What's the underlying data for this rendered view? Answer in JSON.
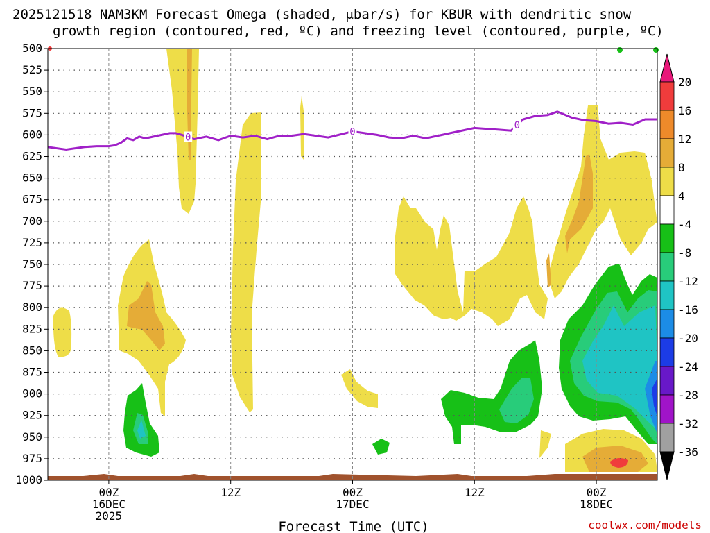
{
  "chart_data": {
    "type": "heatmap",
    "title_line1": "2025121518 NAM3KM Forecast Omega (shaded, μbar/s) for KBUR with dendritic snow",
    "title_line2": "growth region (contoured, red, ºC) and freezing level (contoured, purple, ºC)",
    "xlabel": "Forecast Time (UTC)",
    "credit": "coolwx.com/models",
    "y_levels": [
      "500",
      "525",
      "550",
      "575",
      "600",
      "625",
      "650",
      "675",
      "700",
      "725",
      "750",
      "775",
      "800",
      "825",
      "850",
      "875",
      "900",
      "925",
      "950",
      "975",
      "1000"
    ],
    "ylim": [
      500,
      1000
    ],
    "xlim_hours": [
      -5,
      45
    ],
    "x_ticks": [
      {
        "hour": 0,
        "line1": "00Z",
        "line2": "16DEC",
        "line3": "2025"
      },
      {
        "hour": 10,
        "line1": "12Z",
        "line2": "",
        "line3": ""
      },
      {
        "hour": 20,
        "line1": "00Z",
        "line2": "17DEC",
        "line3": ""
      },
      {
        "hour": 30,
        "line1": "12Z",
        "line2": "",
        "line3": ""
      },
      {
        "hour": 40,
        "line1": "00Z",
        "line2": "18DEC",
        "line3": ""
      }
    ],
    "colorbar": [
      {
        "label": "20",
        "color": "#f03c3c"
      },
      {
        "label": "16",
        "color": "#ee8a2a"
      },
      {
        "label": "12",
        "color": "#e5ac37"
      },
      {
        "label": "8",
        "color": "#eedd48"
      },
      {
        "label": "4",
        "color": "#ffffff"
      },
      {
        "label": "-4",
        "color": "#17c017"
      },
      {
        "label": "-8",
        "color": "#28cc7a"
      },
      {
        "label": "-12",
        "color": "#1fc4c4"
      },
      {
        "label": "-16",
        "color": "#1c8ce6"
      },
      {
        "label": "-20",
        "color": "#1c3ce6"
      },
      {
        "label": "-24",
        "color": "#6818c8"
      },
      {
        "label": "-28",
        "color": "#a014c8"
      },
      {
        "label": "-32",
        "color": "#a0a0a0"
      },
      {
        "label": "-36",
        "color": "#000000"
      }
    ],
    "colorbar_top_color": "#e8197a",
    "freezing_level": {
      "label": "0",
      "hours": [
        -5,
        -3.5,
        -2,
        -1,
        0,
        0.5,
        1,
        1.5,
        2,
        2.5,
        3,
        4,
        5,
        5.5,
        6,
        7,
        8,
        9,
        10,
        11,
        12,
        13,
        14,
        15,
        16,
        18,
        20,
        22,
        23,
        24,
        25,
        26,
        28,
        30,
        32,
        33,
        34,
        35,
        36,
        36.8,
        38,
        39,
        40,
        41,
        42,
        43,
        44,
        45
      ],
      "pressure": [
        614,
        617,
        614,
        613,
        613,
        612,
        609,
        604,
        606,
        602,
        604,
        601,
        598,
        598,
        600,
        605,
        602,
        606,
        601,
        603,
        601,
        605,
        601,
        601,
        599,
        603,
        596,
        600,
        603,
        604,
        601,
        604,
        598,
        592,
        594,
        595,
        582,
        578,
        577,
        573,
        580,
        583,
        584,
        587,
        586,
        588,
        582,
        582
      ],
      "label_hours": [
        6.5,
        20,
        33.5
      ]
    },
    "omega_regions": [
      {
        "value": "4 to 8",
        "color": "#eedd48",
        "desc": "weak ascent patches"
      },
      {
        "value": "8 to 12",
        "color": "#e5ac37"
      },
      {
        "value": "16 to 20",
        "color": "#f03c3c"
      },
      {
        "value": "-4 to -8",
        "color": "#17c017"
      },
      {
        "value": "-8 to -12",
        "color": "#28cc7a"
      },
      {
        "value": "-12 to -16",
        "color": "#1fc4c4"
      },
      {
        "value": "-16 to -20",
        "color": "#1c8ce6"
      },
      {
        "value": "-20 to -24",
        "color": "#1c3ce6"
      },
      {
        "value": "-24 to -28",
        "color": "#6818c8"
      }
    ],
    "terrain_color": "#a0522d"
  }
}
